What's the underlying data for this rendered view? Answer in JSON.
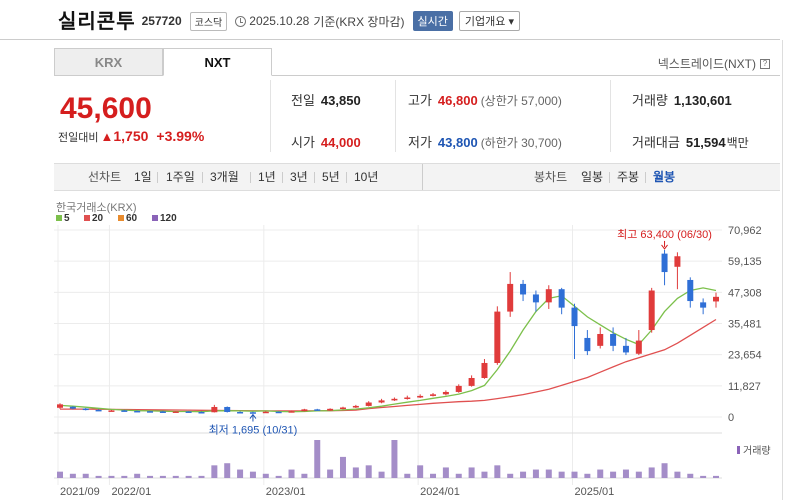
{
  "header": {
    "name": "실리콘투",
    "code": "257720",
    "market": "코스닥",
    "date": "2025.10.28",
    "date_suffix": "기준(KRX 장마감)",
    "realtime": "실시간",
    "company": "기업개요 ▾"
  },
  "tabs": [
    {
      "label": "KRX"
    },
    {
      "label": "NXT"
    }
  ],
  "nxt_link": "넥스트레이드(NXT)",
  "price": {
    "current": "45,600",
    "change_label": "전일대비",
    "change_value": "1,750",
    "change_pct": "+3.99%"
  },
  "stats": {
    "prev_close": {
      "label": "전일",
      "value": "43,850"
    },
    "open": {
      "label": "시가",
      "value": "44,000"
    },
    "high": {
      "label": "고가",
      "value": "46,800",
      "note": "(상한가 57,000)"
    },
    "low": {
      "label": "저가",
      "value": "43,800",
      "note": "(하한가 30,700)"
    },
    "volume": {
      "label": "거래량",
      "value": "1,130,601"
    },
    "amount": {
      "label": "거래대금",
      "value": "51,594",
      "unit": "백만"
    }
  },
  "toolbar": {
    "line_label": "선차트",
    "periods": [
      "1일",
      "1주일",
      "3개월",
      "1년",
      "3년",
      "5년",
      "10년"
    ],
    "candle_label": "봉차트",
    "candles": [
      "일봉",
      "주봉",
      "월봉"
    ],
    "selected_candle": "월봉"
  },
  "chart_data": {
    "type": "candlestick",
    "title": "한국거래소(KRX)",
    "legend": [
      {
        "name": "5",
        "color": "#7cc04b"
      },
      {
        "name": "20",
        "color": "#e05050"
      },
      {
        "name": "60",
        "color": "#e88b2e"
      },
      {
        "name": "120",
        "color": "#8a63b8"
      }
    ],
    "y_ticks": [
      "70,962",
      "59,135",
      "47,308",
      "35,481",
      "23,654",
      "11,827",
      "0"
    ],
    "ylim": [
      0,
      70962
    ],
    "x_ticks": [
      {
        "label": "2021/09",
        "index": 0
      },
      {
        "label": "2022/01",
        "index": 4
      },
      {
        "label": "2023/01",
        "index": 16
      },
      {
        "label": "2024/01",
        "index": 28
      },
      {
        "label": "2025/01",
        "index": 40
      }
    ],
    "candles": [
      {
        "o": 3500,
        "c": 4800,
        "h": 5200,
        "l": 3100
      },
      {
        "o": 3900,
        "c": 3200,
        "h": 4100,
        "l": 2900
      },
      {
        "o": 3200,
        "c": 2700,
        "h": 3400,
        "l": 2500
      },
      {
        "o": 2700,
        "c": 2500,
        "h": 2900,
        "l": 2300
      },
      {
        "o": 2500,
        "c": 2500,
        "h": 2700,
        "l": 2300
      },
      {
        "o": 2500,
        "c": 2300,
        "h": 2700,
        "l": 2100
      },
      {
        "o": 2300,
        "c": 2200,
        "h": 2400,
        "l": 2000
      },
      {
        "o": 2200,
        "c": 2100,
        "h": 2300,
        "l": 1900
      },
      {
        "o": 2100,
        "c": 2000,
        "h": 2300,
        "l": 1900
      },
      {
        "o": 2000,
        "c": 2100,
        "h": 2200,
        "l": 1800
      },
      {
        "o": 2100,
        "c": 1900,
        "h": 2200,
        "l": 1800
      },
      {
        "o": 1900,
        "c": 1800,
        "h": 2100,
        "l": 1700
      },
      {
        "o": 1800,
        "c": 3800,
        "h": 4600,
        "l": 1700
      },
      {
        "o": 3800,
        "c": 1900,
        "h": 4000,
        "l": 1700
      },
      {
        "o": 1900,
        "c": 1800,
        "h": 2100,
        "l": 1700
      },
      {
        "o": 1800,
        "c": 1700,
        "h": 2000,
        "l": 1695
      },
      {
        "o": 1700,
        "c": 2000,
        "h": 2200,
        "l": 1695
      },
      {
        "o": 2000,
        "c": 1800,
        "h": 2100,
        "l": 1700
      },
      {
        "o": 1800,
        "c": 2200,
        "h": 2400,
        "l": 1700
      },
      {
        "o": 2200,
        "c": 2900,
        "h": 3100,
        "l": 2100
      },
      {
        "o": 2900,
        "c": 2400,
        "h": 3100,
        "l": 2300
      },
      {
        "o": 2400,
        "c": 3100,
        "h": 3300,
        "l": 2300
      },
      {
        "o": 3100,
        "c": 3600,
        "h": 3900,
        "l": 2900
      },
      {
        "o": 3600,
        "c": 4200,
        "h": 4600,
        "l": 3400
      },
      {
        "o": 4200,
        "c": 5500,
        "h": 6000,
        "l": 4000
      },
      {
        "o": 5500,
        "c": 6300,
        "h": 6900,
        "l": 5200
      },
      {
        "o": 6300,
        "c": 6900,
        "h": 7400,
        "l": 6100
      },
      {
        "o": 6900,
        "c": 7400,
        "h": 8100,
        "l": 6600
      },
      {
        "o": 7400,
        "c": 8000,
        "h": 8600,
        "l": 7200
      },
      {
        "o": 8000,
        "c": 8600,
        "h": 9100,
        "l": 7800
      },
      {
        "o": 8600,
        "c": 9500,
        "h": 10100,
        "l": 8200
      },
      {
        "o": 9500,
        "c": 11800,
        "h": 12400,
        "l": 9200
      },
      {
        "o": 11800,
        "c": 14800,
        "h": 15800,
        "l": 11500
      },
      {
        "o": 14800,
        "c": 20500,
        "h": 22000,
        "l": 14500
      },
      {
        "o": 20500,
        "c": 40000,
        "h": 42000,
        "l": 19800
      },
      {
        "o": 40000,
        "c": 50500,
        "h": 55000,
        "l": 38000
      },
      {
        "o": 50500,
        "c": 46500,
        "h": 52000,
        "l": 44000
      },
      {
        "o": 46500,
        "c": 43500,
        "h": 48000,
        "l": 40000
      },
      {
        "o": 43500,
        "c": 48500,
        "h": 50000,
        "l": 41000
      },
      {
        "o": 48500,
        "c": 41500,
        "h": 49000,
        "l": 39000
      },
      {
        "o": 41500,
        "c": 34500,
        "h": 43000,
        "l": 22000
      },
      {
        "o": 30000,
        "c": 25000,
        "h": 33000,
        "l": 23500
      },
      {
        "o": 27000,
        "c": 31500,
        "h": 34000,
        "l": 26000
      },
      {
        "o": 31500,
        "c": 27000,
        "h": 34000,
        "l": 25000
      },
      {
        "o": 27000,
        "c": 24500,
        "h": 30000,
        "l": 23500
      },
      {
        "o": 24000,
        "c": 29000,
        "h": 33000,
        "l": 23500
      },
      {
        "o": 33000,
        "c": 48000,
        "h": 49000,
        "l": 32000
      },
      {
        "o": 62000,
        "c": 55000,
        "h": 63400,
        "l": 50000
      },
      {
        "o": 57000,
        "c": 61000,
        "h": 62500,
        "l": 48500
      },
      {
        "o": 52000,
        "c": 44000,
        "h": 53000,
        "l": 41500
      },
      {
        "o": 43500,
        "c": 41500,
        "h": 45000,
        "l": 39000
      },
      {
        "o": 43850,
        "c": 45600,
        "h": 47200,
        "l": 41500
      }
    ],
    "ma5": [
      4400,
      4100,
      3700,
      3300,
      2900,
      2600,
      2400,
      2300,
      2200,
      2100,
      2100,
      2000,
      2300,
      2400,
      2300,
      2200,
      2300,
      2100,
      2000,
      2100,
      2300,
      2400,
      2700,
      3000,
      3500,
      4100,
      4900,
      5600,
      6300,
      7100,
      7800,
      8700,
      10000,
      12000,
      18000,
      25000,
      33000,
      40000,
      45000,
      46000,
      42000,
      38000,
      35000,
      32000,
      29500,
      27500,
      33000,
      40000,
      45000,
      48000,
      49000,
      48000
    ],
    "ma20": [
      3000,
      3000,
      3000,
      2950,
      2900,
      2850,
      2800,
      2750,
      2700,
      2650,
      2600,
      2550,
      2500,
      2450,
      2400,
      2350,
      2300,
      2300,
      2300,
      2300,
      2350,
      2400,
      2450,
      2600,
      3200,
      3600,
      4000,
      4400,
      4800,
      5200,
      5500,
      5800,
      6000,
      6300,
      7000,
      7700,
      8500,
      9500,
      10500,
      12000,
      13500,
      15000,
      17000,
      19000,
      21000,
      22500,
      24000,
      25500,
      28000,
      31000,
      34000,
      37000
    ]
  },
  "annotations": {
    "max": "최고 63,400 (06/30)",
    "min": "최저 1,695 (10/31)"
  },
  "volume_label": "거래량",
  "volume_data": [
    3,
    2,
    2,
    1,
    1,
    1,
    2,
    1,
    1,
    1,
    1,
    1,
    6,
    7,
    4,
    3,
    2,
    1,
    4,
    2,
    18,
    4,
    10,
    5,
    6,
    3,
    18,
    2,
    6,
    2,
    5,
    2,
    5,
    3,
    6,
    2,
    3,
    4,
    4,
    3,
    3,
    2,
    4,
    3,
    4,
    3,
    5,
    7,
    3,
    2,
    1,
    1
  ]
}
